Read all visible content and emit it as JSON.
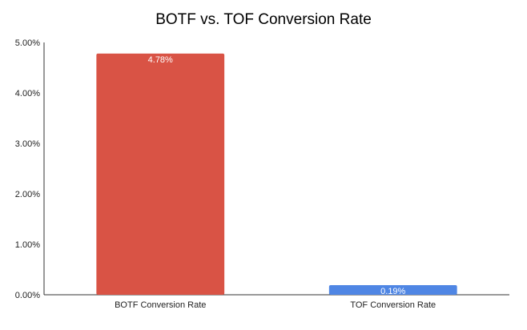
{
  "chart_data": {
    "type": "bar",
    "title": "BOTF vs. TOF Conversion Rate",
    "xlabel": "",
    "ylabel": "",
    "categories": [
      "BOTF Conversion Rate",
      "TOF Conversion Rate"
    ],
    "values": [
      4.78,
      0.19
    ],
    "data_labels": [
      "4.78%",
      "0.19%"
    ],
    "bar_colors": [
      "#d95345",
      "#4f86e4"
    ],
    "ylim": [
      0,
      5
    ],
    "yticks": [
      0,
      1,
      2,
      3,
      4,
      5
    ],
    "ytick_labels": [
      "0.00%",
      "1.00%",
      "2.00%",
      "3.00%",
      "4.00%",
      "5.00%"
    ],
    "grid": false,
    "legend": "none"
  }
}
